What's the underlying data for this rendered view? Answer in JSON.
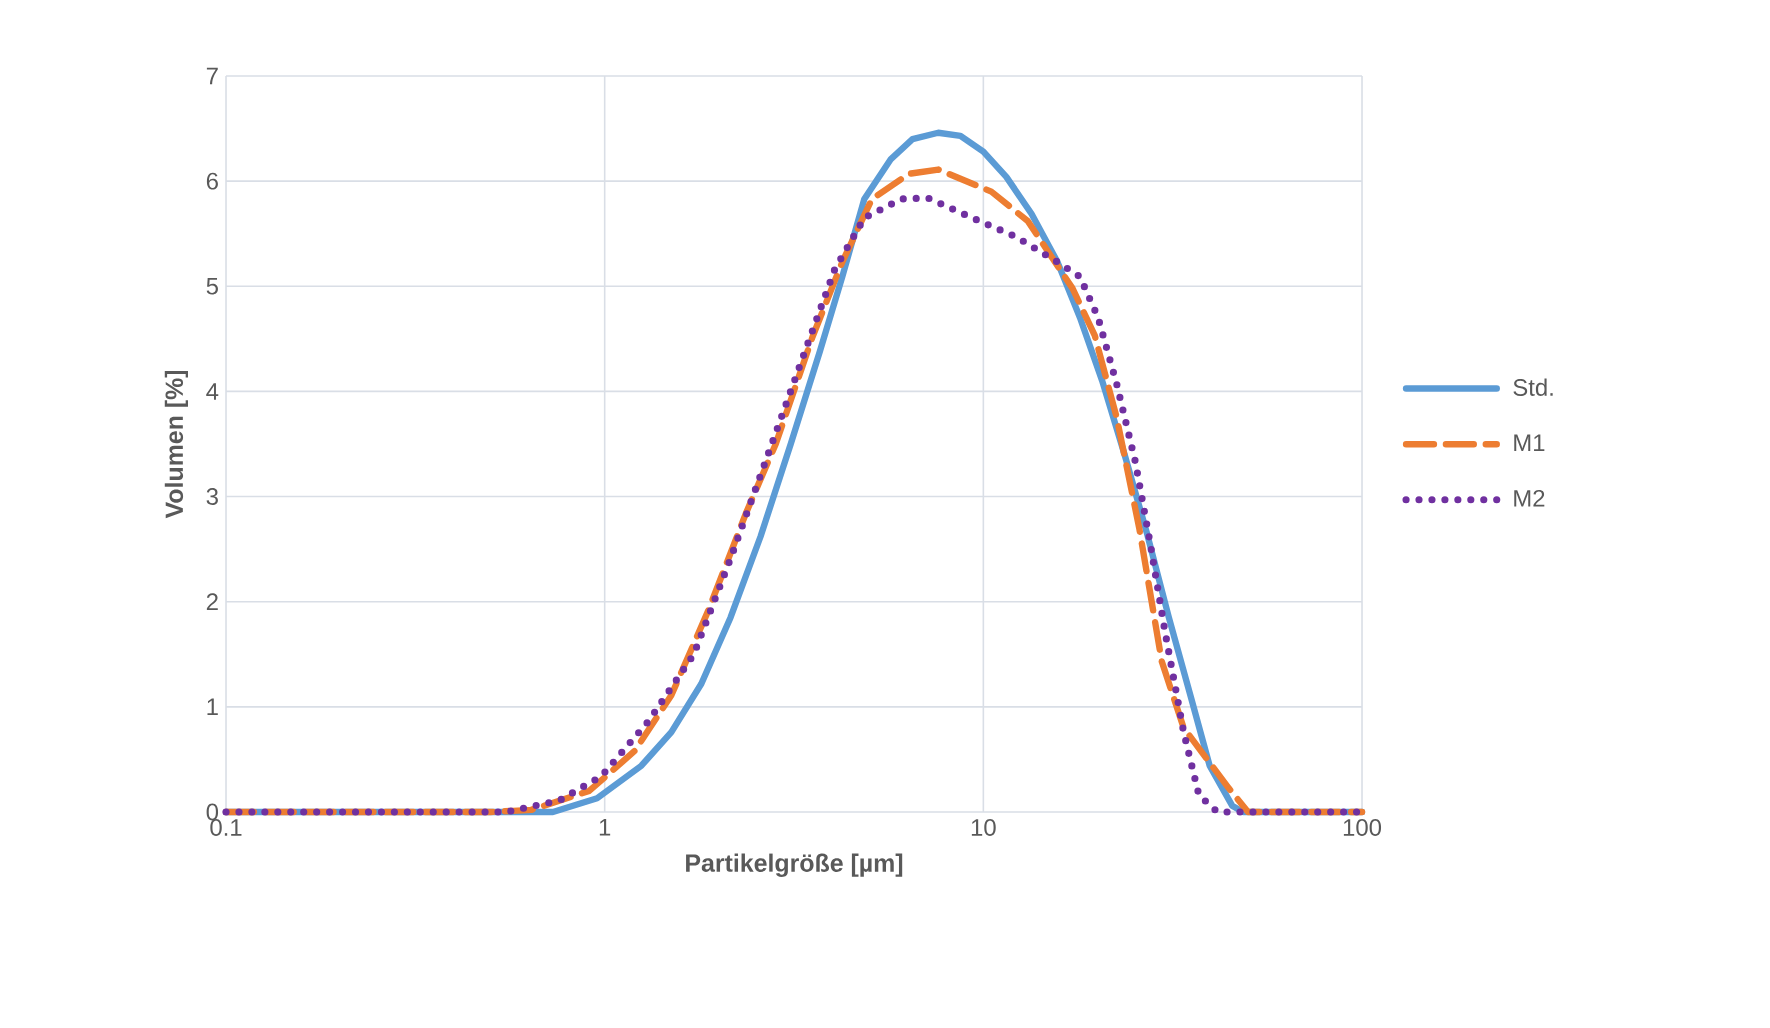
{
  "chart_data": {
    "type": "line",
    "xlabel": "Partikelgröße [µm]",
    "ylabel": "Volumen [%]",
    "log": "x",
    "grid": true,
    "legend": "right",
    "xlim": [
      0.1,
      100
    ],
    "xticks": [
      0.1,
      1,
      10,
      100
    ],
    "ylim": [
      0,
      7
    ],
    "yticks": [
      0,
      1,
      2,
      3,
      4,
      5,
      6,
      7
    ],
    "series": [
      {
        "name": "Std.",
        "color": "#5b9bd5",
        "line_style": "solid",
        "x": [
          0.1,
          0.2,
          0.3,
          0.5,
          0.73,
          0.955,
          1.25,
          1.5,
          1.8,
          2.15,
          2.58,
          3.1,
          3.7,
          4.24,
          4.85,
          5.7,
          6.5,
          7.6,
          8.7,
          10,
          11.5,
          13.4,
          15.7,
          18,
          20.6,
          23.6,
          27,
          30.9,
          35.4,
          39.6,
          45.4,
          48.5,
          60,
          80,
          100
        ],
        "values": [
          0,
          0,
          0,
          0,
          0,
          0.13,
          0.44,
          0.76,
          1.22,
          1.85,
          2.62,
          3.5,
          4.38,
          5.09,
          5.83,
          6.21,
          6.4,
          6.46,
          6.43,
          6.28,
          6.04,
          5.69,
          5.23,
          4.7,
          4.1,
          3.4,
          2.66,
          1.85,
          1.08,
          0.44,
          0.06,
          0,
          0,
          0,
          0
        ]
      },
      {
        "name": "M1",
        "color": "#ed7d31",
        "line_style": "dashed",
        "x": [
          0.1,
          0.2,
          0.3,
          0.5,
          0.64,
          0.91,
          1.2,
          1.5,
          1.88,
          2.36,
          2.83,
          3.54,
          4.24,
          5.08,
          6.37,
          7.6,
          10.5,
          13.1,
          17.2,
          19.7,
          22.5,
          25.8,
          29.6,
          33.8,
          44.4,
          50,
          60,
          80,
          100
        ],
        "values": [
          0,
          0,
          0,
          0,
          0.02,
          0.2,
          0.58,
          1.11,
          1.92,
          2.84,
          3.5,
          4.52,
          5.23,
          5.83,
          6.07,
          6.11,
          5.9,
          5.62,
          4.98,
          4.53,
          3.75,
          2.7,
          1.43,
          0.8,
          0.23,
          0,
          0,
          0,
          0
        ]
      },
      {
        "name": "M2",
        "color": "#7030a0",
        "line_style": "dotted",
        "x": [
          0.1,
          0.2,
          0.3,
          0.55,
          0.76,
          0.98,
          1.31,
          1.72,
          2.15,
          2.7,
          3.38,
          4.05,
          4.85,
          6.08,
          7.13,
          9.35,
          12.2,
          15.7,
          18,
          20.1,
          22.5,
          25.2,
          27.6,
          30.2,
          33.8,
          37.1,
          41.5,
          60,
          80,
          100
        ],
        "values": [
          0,
          0,
          0,
          0,
          0.11,
          0.34,
          0.87,
          1.5,
          2.41,
          3.4,
          4.38,
          5.16,
          5.65,
          5.83,
          5.84,
          5.65,
          5.47,
          5.23,
          5.09,
          4.7,
          4.07,
          3.33,
          2.55,
          1.71,
          0.76,
          0.16,
          0,
          0,
          0,
          0
        ]
      }
    ]
  }
}
